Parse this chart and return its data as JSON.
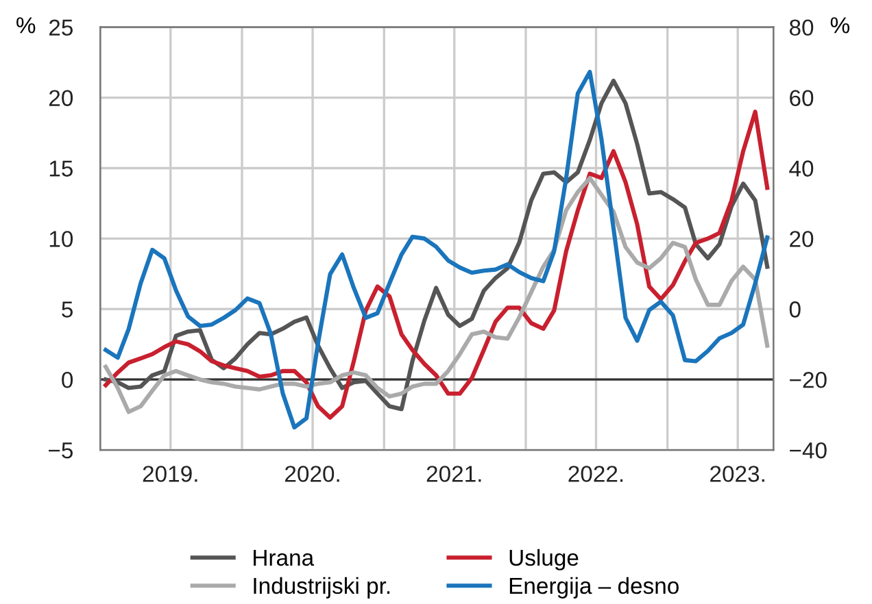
{
  "chart_data": {
    "type": "line",
    "ylabel": "%",
    "y2label": "%",
    "x": [
      "2019-01-15",
      "2019-02-15",
      "2019-03-15",
      "2019-04-15",
      "2019-05-15",
      "2019-06-15",
      "2019-07-15",
      "2019-08-15",
      "2019-09-15",
      "2019-10-15",
      "2019-11-15",
      "2019-12-15",
      "2020-01-15",
      "2020-02-15",
      "2020-03-15",
      "2020-04-15",
      "2020-05-15",
      "2020-06-15",
      "2020-07-15",
      "2020-08-15",
      "2020-09-15",
      "2020-10-15",
      "2020-11-15",
      "2020-12-15",
      "2021-01-15",
      "2021-02-15",
      "2021-03-15",
      "2021-04-15",
      "2021-05-15",
      "2021-06-15",
      "2021-07-15",
      "2021-08-15",
      "2021-09-15",
      "2021-10-15",
      "2021-11-15",
      "2021-12-15",
      "2022-01-15",
      "2022-02-15",
      "2022-03-15",
      "2022-04-15",
      "2022-05-15",
      "2022-06-15",
      "2022-07-15",
      "2022-08-15",
      "2022-09-15",
      "2022-10-15",
      "2022-11-15",
      "2022-12-15",
      "2023-01-15",
      "2023-02-15",
      "2023-03-15",
      "2023-04-15",
      "2023-05-15",
      "2023-06-15",
      "2023-07-15",
      "2023-08-15",
      "2023-09-15"
    ],
    "series": [
      {
        "name": "Hrana",
        "color": "#555555",
        "values": [
          0,
          -0.2,
          -0.6,
          -0.5,
          0.3,
          0.6,
          3.1,
          3.4,
          3.5,
          1.4,
          0.8,
          1.5,
          2.5,
          3.3,
          3.2,
          3.6,
          4.1,
          4.4,
          2.4,
          0.8,
          -0.6,
          -0.2,
          -0.1,
          -1.0,
          -1.9,
          -2.1,
          1.3,
          4.2,
          6.5,
          4.6,
          3.8,
          4.3,
          6.3,
          7.2,
          7.9,
          9.7,
          12.7,
          14.6,
          14.7,
          14.0,
          14.7,
          17.0,
          19.6,
          21.2,
          19.6,
          16.7,
          13.2,
          13.3,
          12.8,
          12.2,
          9.6,
          8.6,
          9.6,
          12.3,
          13.9,
          12.7,
          8.0
        ]
      },
      {
        "name": "Usluge",
        "color": "#c8202f",
        "values": [
          -0.4,
          0.5,
          1.2,
          1.5,
          1.8,
          2.3,
          2.7,
          2.5,
          2.0,
          1.3,
          1.0,
          0.8,
          0.6,
          0.2,
          0.3,
          0.6,
          0.6,
          -0.2,
          -1.9,
          -2.7,
          -1.9,
          1.3,
          4.9,
          6.6,
          5.9,
          3.2,
          2.1,
          1.1,
          0.3,
          -1.0,
          -1.0,
          0.1,
          2.1,
          4.1,
          5.1,
          5.1,
          4.0,
          3.6,
          4.9,
          9.1,
          12.0,
          14.6,
          14.3,
          16.2,
          14.0,
          11.0,
          6.6,
          5.7,
          6.7,
          8.4,
          9.7,
          10.0,
          10.4,
          12.7,
          16.2,
          19.0,
          13.6
        ]
      },
      {
        "name": "Industrijski pr.",
        "color": "#aaaaaa",
        "values": [
          0.9,
          -0.6,
          -2.3,
          -1.9,
          -0.8,
          0.3,
          0.6,
          0.3,
          0,
          -0.2,
          -0.3,
          -0.5,
          -0.6,
          -0.7,
          -0.5,
          -0.3,
          -0.3,
          -0.5,
          -0.3,
          -0.2,
          0.3,
          0.5,
          0.3,
          -0.6,
          -1.2,
          -1.0,
          -0.5,
          -0.3,
          -0.3,
          0.6,
          1.8,
          3.2,
          3.4,
          3.0,
          2.9,
          4.4,
          6.2,
          8.0,
          9.2,
          12.0,
          13.3,
          14.3,
          13.1,
          11.9,
          9.4,
          8.3,
          7.9,
          8.6,
          9.7,
          9.4,
          7.1,
          5.3,
          5.3,
          7.0,
          8.0,
          7.1,
          2.4
        ]
      },
      {
        "name": "Energija – desno",
        "color": "#1a75bc",
        "axis": "y2",
        "values": [
          -11.6,
          -13.8,
          -5.7,
          7.3,
          16.8,
          14.4,
          5.3,
          -2.1,
          -4.8,
          -4.4,
          -2.5,
          -0.3,
          3.0,
          1.7,
          -7.0,
          -23.9,
          -33.6,
          -31.0,
          -9.6,
          9.9,
          15.5,
          6.0,
          -2.5,
          -1.2,
          7.3,
          15.5,
          20.5,
          20.0,
          17.7,
          13.8,
          11.8,
          10.3,
          10.9,
          11.2,
          12.7,
          10.5,
          8.8,
          7.9,
          16.4,
          37.1,
          61.2,
          67.3,
          48.2,
          22.9,
          -2.5,
          -9.0,
          -0.3,
          2.1,
          -1.8,
          -14.5,
          -14.8,
          -11.9,
          -8.3,
          -6.8,
          -4.4,
          7.3,
          20.3
        ]
      }
    ],
    "xlim": [
      "2019-01-01",
      "2023-10-01"
    ],
    "xticks": [
      {
        "value": "2019-07-01",
        "label": "2019."
      },
      {
        "value": "2020-01-01",
        "label": null
      },
      {
        "value": "2020-07-01",
        "label": "2020."
      },
      {
        "value": "2021-01-01",
        "label": null
      },
      {
        "value": "2021-07-01",
        "label": "2021."
      },
      {
        "value": "2022-01-01",
        "label": null
      },
      {
        "value": "2022-07-01",
        "label": "2022."
      },
      {
        "value": "2023-01-01",
        "label": null
      },
      {
        "value": "2023-07-01",
        "label": "2023."
      }
    ],
    "ylim": [
      -5,
      25
    ],
    "yticks": [
      {
        "value": -5,
        "label": "−5"
      },
      0,
      5,
      10,
      15,
      20,
      25
    ],
    "y2lim": [
      -40,
      80
    ],
    "y2ticks": [
      {
        "value": -40,
        "label": "−40"
      },
      {
        "value": -20,
        "label": "−20"
      },
      0,
      20,
      40,
      60,
      80
    ],
    "ref_lines": [
      {
        "axis": "y",
        "value": 0,
        "color": "#333333"
      }
    ],
    "grid": true,
    "legend": "bottom",
    "marker": "none",
    "line_style": "solid"
  }
}
